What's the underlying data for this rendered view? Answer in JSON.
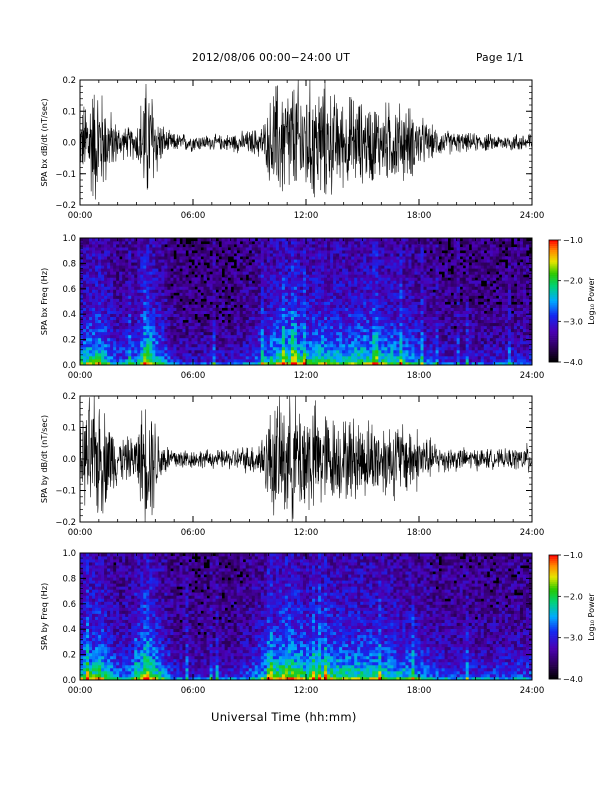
{
  "header": {
    "title": "2012/08/06  00:00−24:00 UT",
    "page": "Page 1/1"
  },
  "footer": {
    "xlabel": "Universal Time (hh:mm)"
  },
  "colors": {
    "background": "#ffffff",
    "trace": "#000000",
    "spec_background": "#000000"
  },
  "chart_data": [
    {
      "type": "line",
      "ylabel": "SPA bx dB/dt (nT/sec)",
      "x_ticks": [
        "00:00",
        "06:00",
        "12:00",
        "18:00",
        "24:00"
      ],
      "xlim_hours": [
        0,
        24
      ],
      "ylim": [
        -0.2,
        0.2
      ],
      "y_ticks": [
        "0.2",
        "0.1",
        "0.0",
        "−0.1",
        "−0.2"
      ],
      "y_tick_values": [
        0.2,
        0.1,
        0.0,
        -0.1,
        -0.2
      ],
      "series": [
        {
          "x_hours": [
            0,
            0.5,
            1,
            1.5,
            2,
            2.5,
            3,
            3.4,
            3.8,
            4.2,
            4.6,
            5,
            5.5,
            6,
            6.5,
            7,
            7.5,
            8,
            8.5,
            9,
            9.5,
            9.9,
            10.3,
            10.7,
            11.1,
            11.5,
            12,
            12.5,
            13,
            13.5,
            14,
            14.5,
            15,
            15.5,
            16,
            16.5,
            17,
            17.5,
            18,
            18.5,
            19,
            19.5,
            20,
            20.5,
            21,
            21.5,
            22,
            22.5,
            23,
            23.5,
            24
          ],
          "envelope": [
            0.08,
            0.2,
            0.2,
            0.12,
            0.06,
            0.05,
            0.06,
            0.2,
            0.2,
            0.08,
            0.04,
            0.03,
            0.03,
            0.03,
            0.025,
            0.025,
            0.025,
            0.03,
            0.035,
            0.04,
            0.05,
            0.08,
            0.2,
            0.2,
            0.2,
            0.2,
            0.2,
            0.2,
            0.2,
            0.16,
            0.14,
            0.16,
            0.13,
            0.14,
            0.12,
            0.14,
            0.13,
            0.12,
            0.09,
            0.06,
            0.045,
            0.04,
            0.035,
            0.03,
            0.03,
            0.03,
            0.025,
            0.025,
            0.03,
            0.03,
            0.045
          ]
        }
      ]
    },
    {
      "type": "heatmap",
      "ylabel": "SPA bx Freq (Hz)",
      "x_ticks": [
        "00:00",
        "06:00",
        "12:00",
        "18:00",
        "24:00"
      ],
      "xlim_hours": [
        0,
        24
      ],
      "ylim": [
        0,
        1.0
      ],
      "y_ticks": [
        "1.0",
        "0.8",
        "0.6",
        "0.4",
        "0.2",
        "0.0"
      ],
      "y_tick_values": [
        1.0,
        0.8,
        0.6,
        0.4,
        0.2,
        0.0
      ],
      "colorbar": {
        "label": "Log₁₀ Power",
        "ticks": [
          "−1.0",
          "−2.0",
          "−3.0",
          "−4.0"
        ],
        "tick_values": [
          -1,
          -2,
          -3,
          -4
        ],
        "range": [
          -4,
          -1
        ]
      },
      "activity_hours": [
        0,
        1,
        2,
        3,
        3.5,
        4,
        5,
        6,
        8,
        9,
        10,
        11,
        12,
        13,
        14,
        15,
        16,
        17,
        18,
        19,
        21,
        24
      ],
      "activity_level": [
        0.55,
        0.7,
        0.35,
        0.45,
        0.9,
        0.6,
        0.25,
        0.2,
        0.22,
        0.3,
        0.55,
        0.75,
        0.6,
        0.65,
        0.6,
        0.65,
        0.6,
        0.55,
        0.45,
        0.25,
        0.22,
        0.28
      ]
    },
    {
      "type": "line",
      "ylabel": "SPA by dB/dt (nT/sec)",
      "x_ticks": [
        "00:00",
        "06:00",
        "12:00",
        "18:00",
        "24:00"
      ],
      "xlim_hours": [
        0,
        24
      ],
      "ylim": [
        -0.2,
        0.2
      ],
      "y_ticks": [
        "0.2",
        "0.1",
        "0.0",
        "−0.1",
        "−0.2"
      ],
      "y_tick_values": [
        0.2,
        0.1,
        0.0,
        -0.1,
        -0.2
      ],
      "series": [
        {
          "x_hours": [
            0,
            0.5,
            1,
            1.5,
            2,
            2.5,
            3,
            3.4,
            3.8,
            4.2,
            4.6,
            5,
            5.5,
            6,
            6.5,
            7,
            7.5,
            8,
            8.5,
            9,
            9.5,
            9.9,
            10.3,
            10.7,
            11.1,
            11.5,
            12,
            12.5,
            13,
            13.5,
            14,
            14.5,
            15,
            15.5,
            16,
            16.5,
            17,
            17.5,
            18,
            18.5,
            19,
            19.5,
            20,
            20.5,
            21,
            21.5,
            22,
            22.5,
            23,
            23.5,
            24
          ],
          "envelope": [
            0.09,
            0.2,
            0.2,
            0.14,
            0.08,
            0.07,
            0.08,
            0.2,
            0.2,
            0.09,
            0.05,
            0.04,
            0.035,
            0.03,
            0.03,
            0.03,
            0.03,
            0.035,
            0.04,
            0.045,
            0.06,
            0.12,
            0.2,
            0.2,
            0.2,
            0.2,
            0.2,
            0.18,
            0.16,
            0.14,
            0.13,
            0.14,
            0.13,
            0.13,
            0.12,
            0.13,
            0.12,
            0.12,
            0.1,
            0.07,
            0.05,
            0.045,
            0.04,
            0.035,
            0.035,
            0.035,
            0.03,
            0.03,
            0.035,
            0.04,
            0.06
          ]
        }
      ]
    },
    {
      "type": "heatmap",
      "ylabel": "SPA by Freq (Hz)",
      "x_ticks": [
        "00:00",
        "06:00",
        "12:00",
        "18:00",
        "24:00"
      ],
      "xlim_hours": [
        0,
        24
      ],
      "ylim": [
        0,
        1.0
      ],
      "y_ticks": [
        "1.0",
        "0.8",
        "0.6",
        "0.4",
        "0.2",
        "0.0"
      ],
      "y_tick_values": [
        1.0,
        0.8,
        0.6,
        0.4,
        0.2,
        0.0
      ],
      "colorbar": {
        "label": "Log₁₀ Power",
        "ticks": [
          "−1.0",
          "−2.0",
          "−3.0",
          "−4.0"
        ],
        "tick_values": [
          -1,
          -2,
          -3,
          -4
        ],
        "range": [
          -4,
          -1
        ]
      },
      "activity_hours": [
        0,
        1,
        2,
        3,
        3.5,
        4,
        5,
        6,
        8,
        9,
        10,
        11,
        12,
        13,
        14,
        15,
        16,
        17,
        18,
        19,
        21,
        24
      ],
      "activity_level": [
        0.6,
        0.75,
        0.4,
        0.5,
        0.95,
        0.65,
        0.3,
        0.25,
        0.25,
        0.35,
        0.6,
        0.85,
        0.65,
        0.7,
        0.65,
        0.65,
        0.6,
        0.55,
        0.5,
        0.35,
        0.3,
        0.35
      ]
    }
  ]
}
